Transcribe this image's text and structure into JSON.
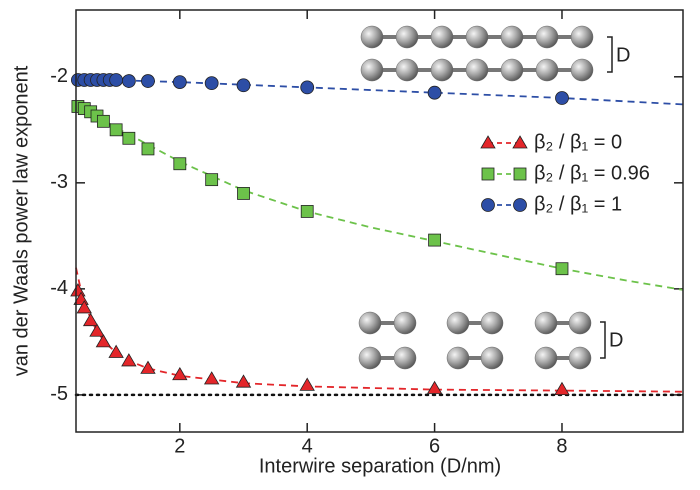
{
  "chart_data": {
    "type": "scatter",
    "xlabel": "Interwire separation (D/nm)",
    "ylabel": "van der Waals power law exponent",
    "xlim": [
      0.37,
      9.9
    ],
    "ylim": [
      -5.35,
      -1.37
    ],
    "xticks": [
      2,
      4,
      6,
      8
    ],
    "yticks": [
      -5,
      -4,
      -3,
      -2
    ],
    "reference_line": -5,
    "annotations": [
      "D",
      "D"
    ],
    "series": [
      {
        "name": "β₂ / β₁ = 0",
        "color": "#e3262a",
        "marker": "triangle",
        "x": [
          0.4,
          0.45,
          0.5,
          0.6,
          0.7,
          0.8,
          1.0,
          1.2,
          1.5,
          2,
          2.5,
          3,
          4,
          6,
          8
        ],
        "values": [
          -4.02,
          -4.1,
          -4.18,
          -4.3,
          -4.4,
          -4.5,
          -4.6,
          -4.68,
          -4.75,
          -4.81,
          -4.85,
          -4.88,
          -4.91,
          -4.94,
          -4.95
        ],
        "fit_x": [
          0.37,
          0.45,
          0.5,
          0.6,
          0.7,
          0.85,
          1,
          1.25,
          1.5,
          2,
          3,
          4,
          6,
          8,
          9.9
        ],
        "fit_values": [
          -3.8,
          -4.02,
          -4.12,
          -4.28,
          -4.4,
          -4.52,
          -4.6,
          -4.69,
          -4.75,
          -4.82,
          -4.89,
          -4.92,
          -4.95,
          -4.96,
          -4.97
        ]
      },
      {
        "name": "β₂ / β₁ = 0.96",
        "color": "#6cc24a",
        "marker": "square",
        "x": [
          0.4,
          0.5,
          0.6,
          0.7,
          0.8,
          1.0,
          1.2,
          1.5,
          2,
          2.5,
          3,
          4,
          6,
          8
        ],
        "values": [
          -2.28,
          -2.3,
          -2.33,
          -2.37,
          -2.42,
          -2.5,
          -2.58,
          -2.68,
          -2.82,
          -2.97,
          -3.1,
          -3.27,
          -3.54,
          -3.81
        ],
        "fit_x": [
          0.37,
          1,
          2,
          3,
          4,
          5,
          6,
          7,
          8,
          9,
          9.9
        ],
        "fit_values": [
          -2.25,
          -2.48,
          -2.8,
          -3.07,
          -3.27,
          -3.42,
          -3.55,
          -3.68,
          -3.81,
          -3.92,
          -4.01
        ]
      },
      {
        "name": "β₂ / β₁ = 1",
        "color": "#2d4ea6",
        "marker": "circle",
        "x": [
          0.4,
          0.5,
          0.6,
          0.7,
          0.8,
          0.9,
          1.0,
          1.2,
          1.5,
          2,
          2.5,
          3,
          4,
          6,
          8
        ],
        "values": [
          -2.03,
          -2.03,
          -2.03,
          -2.03,
          -2.03,
          -2.03,
          -2.03,
          -2.04,
          -2.04,
          -2.05,
          -2.06,
          -2.08,
          -2.1,
          -2.15,
          -2.2
        ],
        "fit_x": [
          0.37,
          2,
          4,
          6,
          8,
          9.9
        ],
        "fit_values": [
          -2.02,
          -2.05,
          -2.1,
          -2.15,
          -2.2,
          -2.26
        ]
      }
    ]
  }
}
